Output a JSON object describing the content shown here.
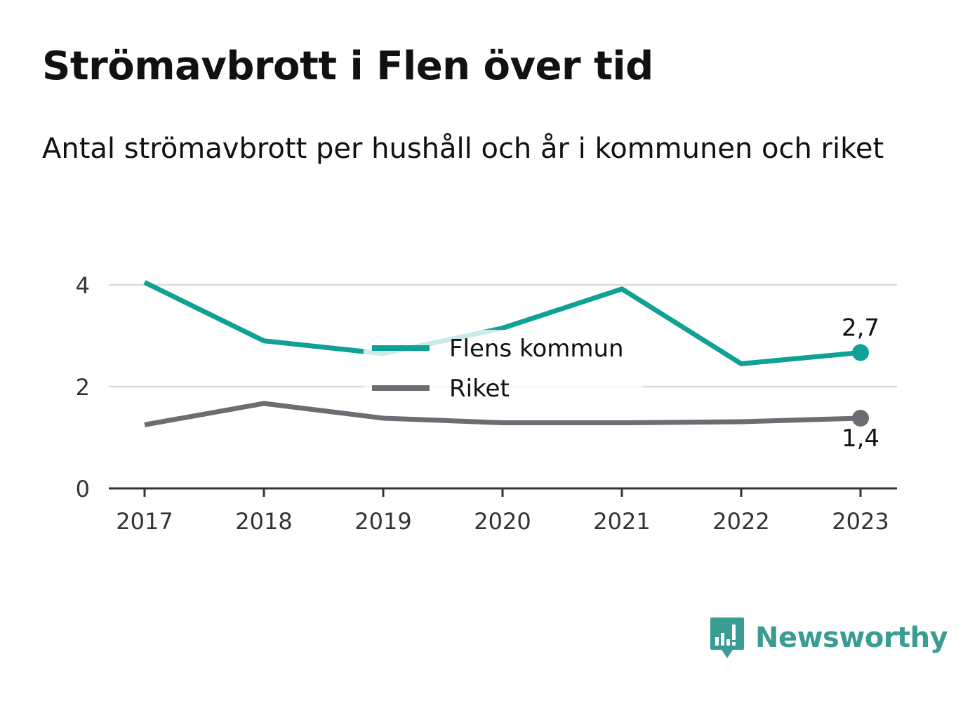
{
  "header": {
    "title": "Strömavbrott i Flen över tid",
    "subtitle": "Antal strömavbrott per hushåll och år i kommunen och riket"
  },
  "chart_data": {
    "type": "line",
    "title": "Strömavbrott i Flen över tid",
    "subtitle": "Antal strömavbrott per hushåll och år i kommunen och riket",
    "x": [
      "2017",
      "2018",
      "2019",
      "2020",
      "2021",
      "2022",
      "2023"
    ],
    "ylim": [
      0,
      4.3
    ],
    "yticks": [
      0,
      2,
      4
    ],
    "ytick_labels": [
      "0",
      "2",
      "4"
    ],
    "grid": true,
    "legend_placement": "center",
    "series": [
      {
        "name": "Flens kommun",
        "color": "#0fa195",
        "values": [
          4.05,
          2.9,
          2.65,
          3.15,
          3.92,
          2.45,
          2.67
        ],
        "end_label": "2,7"
      },
      {
        "name": "Riket",
        "color": "#6d6c73",
        "values": [
          1.25,
          1.67,
          1.38,
          1.29,
          1.29,
          1.31,
          1.38
        ],
        "end_label": "1,4"
      }
    ]
  },
  "brand": {
    "name": "Newsworthy",
    "icon": "newsworthy-logo-icon",
    "color": "#3a9d93"
  }
}
